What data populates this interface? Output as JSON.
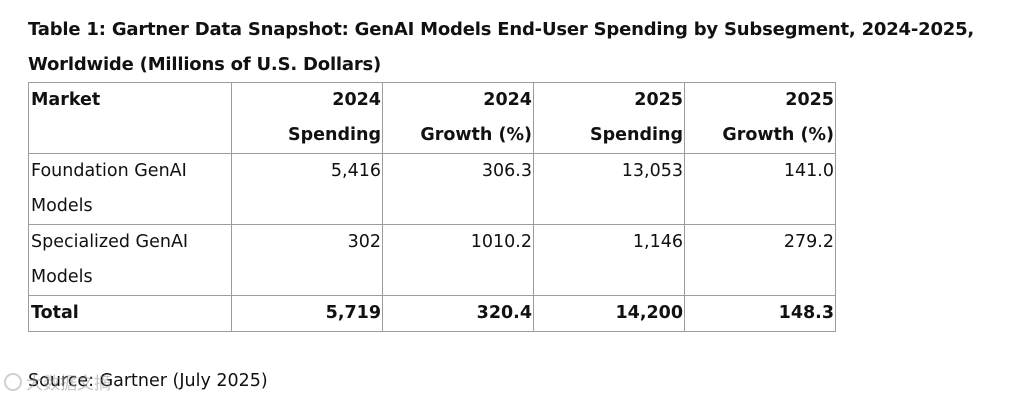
{
  "table": {
    "caption": "Table 1: Gartner Data Snapshot: GenAI Models End-User Spending by Subsegment, 2024-2025, Worldwide (Millions of U.S. Dollars)",
    "headers": [
      {
        "line1": "Market",
        "line2": ""
      },
      {
        "line1": "2024",
        "line2": "Spending"
      },
      {
        "line1": "2024",
        "line2": "Growth (%)"
      },
      {
        "line1": "2025",
        "line2": "Spending"
      },
      {
        "line1": "2025",
        "line2": "Growth (%)"
      }
    ],
    "rows": [
      {
        "market_line1": "Foundation GenAI",
        "market_line2": "Models",
        "spend_2024": "5,416",
        "growth_2024": "306.3",
        "spend_2025": "13,053",
        "growth_2025": "141.0"
      },
      {
        "market_line1": "Specialized GenAI",
        "market_line2": "Models",
        "spend_2024": "302",
        "growth_2024": "1010.2",
        "spend_2025": "1,146",
        "growth_2025": "279.2"
      }
    ],
    "total": {
      "market": "Total",
      "spend_2024": "5,719",
      "growth_2024": "320.4",
      "spend_2025": "14,200",
      "growth_2025": "148.3"
    }
  },
  "source": "Source: Gartner (July 2025)",
  "watermark": "大数据文摘"
}
